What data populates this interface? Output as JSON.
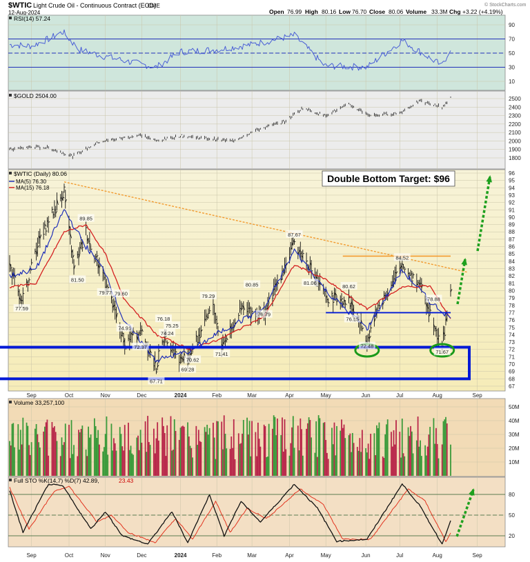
{
  "header": {
    "symbol": "$WTIC",
    "description": "Light Crude Oil - Continuous Contract (EOD)",
    "exchange": "CME",
    "date": "12-Aug-2024",
    "open_label": "Open",
    "open": "76.99",
    "high_label": "High",
    "high": "80.16",
    "low_label": "Low",
    "low": "76.70",
    "close_label": "Close",
    "close": "80.06",
    "volume_label": "Volume",
    "volume": "33.3M",
    "chg_label": "Chg",
    "chg": "+3.22 (+4.19%)",
    "watermark": "© StockCharts.com"
  },
  "colors": {
    "rsi_bg": "#cfe6dc",
    "gold_bg": "#ececec",
    "price_bg_top": "#f6f1cf",
    "price_bg_bottom": "#f7eec0",
    "volume_bg": "#f2dbb6",
    "sto_bg": "#f3dfc4",
    "up": "#3a9a3a",
    "down": "#b8274a",
    "ma5": "#1f2fb8",
    "ma15": "#d42020",
    "support": "#0019d6",
    "arrow": "#1ea01e",
    "ellipse": "#1a9a1a",
    "trendline": "#f29a2e"
  },
  "chart_data": [
    {
      "type": "line",
      "panel": "RSI",
      "title": "RSI(14) 57.24",
      "yticks": [
        "90",
        "70",
        "50",
        "30",
        "10"
      ],
      "ylim": [
        0,
        100
      ],
      "reference_levels": [
        70,
        50,
        30
      ],
      "series": [
        {
          "name": "RSI(14)",
          "x": [
            "2023-08-14",
            "2023-09-01",
            "2023-09-15",
            "2023-09-27",
            "2023-10-10",
            "2023-11-01",
            "2023-11-20",
            "2023-12-13",
            "2024-01-02",
            "2024-02-01",
            "2024-03-01",
            "2024-04-05",
            "2024-04-30",
            "2024-06-04",
            "2024-07-03",
            "2024-08-05",
            "2024-08-12"
          ],
          "values": [
            62,
            60,
            70,
            80,
            55,
            45,
            38,
            30,
            52,
            55,
            62,
            75,
            32,
            30,
            68,
            32,
            57.24
          ]
        }
      ]
    },
    {
      "type": "line",
      "panel": "Gold",
      "title": "$GOLD 2504.00",
      "yticks": [
        "2500",
        "2400",
        "2300",
        "2200",
        "2100",
        "2000",
        "1900",
        "1800"
      ],
      "ylim": [
        1750,
        2600
      ],
      "series": [
        {
          "name": "$GOLD",
          "x": [
            "2023-08-14",
            "2023-09-01",
            "2023-09-15",
            "2023-10-05",
            "2023-10-27",
            "2023-12-01",
            "2023-12-13",
            "2024-01-02",
            "2024-02-14",
            "2024-03-05",
            "2024-03-28",
            "2024-04-12",
            "2024-04-30",
            "2024-05-20",
            "2024-06-07",
            "2024-07-01",
            "2024-07-17",
            "2024-08-05",
            "2024-08-12"
          ],
          "values": [
            1900,
            1930,
            1920,
            1820,
            1990,
            2070,
            2000,
            2060,
            2000,
            2130,
            2230,
            2390,
            2300,
            2430,
            2300,
            2330,
            2470,
            2400,
            2504
          ]
        }
      ]
    },
    {
      "type": "line",
      "panel": "Price",
      "title": "$WTIC (Daily) 80.06",
      "legend": [
        "MA(5) 76.30",
        "MA(15) 76.18"
      ],
      "annotation": "Double Bottom Target: $96",
      "yticks": [
        "96",
        "95",
        "94",
        "93",
        "92",
        "91",
        "90",
        "89",
        "88",
        "87",
        "86",
        "85",
        "84",
        "83",
        "82",
        "81",
        "80",
        "79",
        "78",
        "77",
        "76",
        "75",
        "74",
        "73",
        "72",
        "71",
        "70",
        "69",
        "68",
        "67"
      ],
      "ylim": [
        67,
        96
      ],
      "price_labels": [
        {
          "x": "2023-08-24",
          "y": 77.59,
          "text": "77.59"
        },
        {
          "x": "2023-10-09",
          "y": 81.5,
          "text": "81.50"
        },
        {
          "x": "2023-10-16",
          "y": 89.85,
          "text": "89.85"
        },
        {
          "x": "2023-11-01",
          "y": 79.77,
          "text": "79.77"
        },
        {
          "x": "2023-11-14",
          "y": 79.6,
          "text": "79.60"
        },
        {
          "x": "2023-11-17",
          "y": 74.91,
          "text": "74.91"
        },
        {
          "x": "2023-11-30",
          "y": 72.37,
          "text": "72.37"
        },
        {
          "x": "2023-12-13",
          "y": 67.71,
          "text": "67.71"
        },
        {
          "x": "2023-12-19",
          "y": 76.18,
          "text": "76.18"
        },
        {
          "x": "2023-12-22",
          "y": 74.24,
          "text": "74.24"
        },
        {
          "x": "2023-12-26",
          "y": 75.25,
          "text": "75.25"
        },
        {
          "x": "2024-01-08",
          "y": 69.28,
          "text": "69.28"
        },
        {
          "x": "2024-01-12",
          "y": 70.62,
          "text": "70.62"
        },
        {
          "x": "2024-01-25",
          "y": 79.29,
          "text": "79.29"
        },
        {
          "x": "2024-02-05",
          "y": 71.41,
          "text": "71.41"
        },
        {
          "x": "2024-03-01",
          "y": 80.85,
          "text": "80.85"
        },
        {
          "x": "2024-03-11",
          "y": 76.79,
          "text": "76.79"
        },
        {
          "x": "2024-04-05",
          "y": 87.67,
          "text": "87.67"
        },
        {
          "x": "2024-04-18",
          "y": 81.06,
          "text": "81.06"
        },
        {
          "x": "2024-05-20",
          "y": 80.62,
          "text": "80.62"
        },
        {
          "x": "2024-05-23",
          "y": 76.15,
          "text": "76.15"
        },
        {
          "x": "2024-06-04",
          "y": 72.48,
          "text": "72.48"
        },
        {
          "x": "2024-07-03",
          "y": 84.52,
          "text": "84.52"
        },
        {
          "x": "2024-07-29",
          "y": 78.88,
          "text": "78.88"
        },
        {
          "x": "2024-08-05",
          "y": 71.67,
          "text": "71.67"
        }
      ],
      "series": [
        {
          "name": "$WTIC",
          "x": [
            "2023-08-14",
            "2023-08-24",
            "2023-09-05",
            "2023-09-28",
            "2023-10-06",
            "2023-10-16",
            "2023-10-25",
            "2023-11-01",
            "2023-11-16",
            "2023-12-01",
            "2023-12-13",
            "2023-12-20",
            "2024-01-02",
            "2024-01-10",
            "2024-01-29",
            "2024-02-05",
            "2024-02-21",
            "2024-03-11",
            "2024-04-05",
            "2024-04-19",
            "2024-05-01",
            "2024-05-20",
            "2024-06-04",
            "2024-06-14",
            "2024-07-03",
            "2024-07-17",
            "2024-07-26",
            "2024-08-05",
            "2024-08-12"
          ],
          "values": [
            83.5,
            78,
            86,
            93.7,
            83,
            88,
            84,
            81.5,
            73,
            74.5,
            69.5,
            74,
            70.5,
            71.5,
            78,
            72.5,
            77.5,
            76.8,
            86.5,
            83,
            79,
            78.7,
            73.5,
            78,
            83.5,
            81,
            77.2,
            72.5,
            80.06
          ]
        },
        {
          "name": "MA(5)",
          "x": [
            "2023-08-14",
            "2023-09-05",
            "2023-09-28",
            "2023-10-16",
            "2023-11-01",
            "2023-11-16",
            "2023-12-13",
            "2024-01-10",
            "2024-02-05",
            "2024-03-11",
            "2024-04-05",
            "2024-05-01",
            "2024-06-04",
            "2024-07-03",
            "2024-07-26",
            "2024-08-12"
          ],
          "values": [
            82,
            83,
            91,
            86,
            82.5,
            76,
            70.5,
            71.8,
            74.5,
            77.5,
            85.5,
            80,
            74.8,
            82.8,
            78.5,
            76.3
          ]
        },
        {
          "name": "MA(15)",
          "x": [
            "2023-08-14",
            "2023-09-05",
            "2023-09-28",
            "2023-10-16",
            "2023-11-01",
            "2023-11-16",
            "2023-12-13",
            "2024-01-10",
            "2024-02-05",
            "2024-03-11",
            "2024-04-05",
            "2024-05-01",
            "2024-06-04",
            "2024-07-03",
            "2024-07-26",
            "2024-08-12"
          ],
          "values": [
            80.5,
            81,
            88,
            89,
            85,
            79,
            74,
            72,
            73.5,
            76.5,
            83.5,
            81.5,
            77.5,
            80.5,
            80.6,
            76.18
          ]
        }
      ],
      "lines": [
        {
          "name": "resistance",
          "y": [
            84.7
          ],
          "x": [
            "2024-05-15",
            "2024-08-12"
          ]
        },
        {
          "name": "neckline",
          "y": [
            77
          ],
          "x": [
            "2024-05-01",
            "2024-08-12"
          ]
        },
        {
          "name": "trendline",
          "x": [
            "2023-09-28",
            "2024-08-26"
          ],
          "y": [
            94.8,
            82.5
          ]
        },
        {
          "name": "support-box",
          "y_range": [
            68,
            72.3
          ]
        }
      ],
      "circled_lows": [
        "2024-06-04",
        "2024-08-05"
      ]
    },
    {
      "type": "bar",
      "panel": "Volume",
      "title": "Volume 33,257,100",
      "yticks": [
        "50M",
        "40M",
        "30M",
        "20M",
        "10M"
      ],
      "ylim": [
        0,
        55
      ],
      "values": [
        33.3
      ]
    },
    {
      "type": "line",
      "panel": "Stochastic",
      "title": "Full STO %K(14,7) %D(7) 42.89, 23.43",
      "title_parts": [
        "Full STO %K(14,7) %D(7) 42.89,",
        "23.43"
      ],
      "yticks": [
        "80",
        "50",
        "20"
      ],
      "ylim": [
        0,
        100
      ],
      "reference_levels": [
        80,
        50,
        20
      ],
      "series": [
        {
          "name": "%K",
          "x": [
            "2023-08-14",
            "2023-08-25",
            "2023-09-15",
            "2023-09-27",
            "2023-10-20",
            "2023-11-01",
            "2023-11-15",
            "2023-12-06",
            "2023-12-26",
            "2024-01-08",
            "2024-01-26",
            "2024-02-07",
            "2024-02-21",
            "2024-03-08",
            "2024-04-05",
            "2024-04-24",
            "2024-05-10",
            "2024-06-04",
            "2024-07-03",
            "2024-07-17",
            "2024-08-05",
            "2024-08-12"
          ],
          "values": [
            85,
            25,
            95,
            92,
            30,
            55,
            20,
            8,
            55,
            10,
            80,
            20,
            70,
            40,
            95,
            60,
            12,
            15,
            95,
            65,
            8,
            42.89
          ]
        },
        {
          "name": "%D",
          "x": [
            "2023-08-14",
            "2023-08-30",
            "2023-09-20",
            "2023-10-02",
            "2023-10-25",
            "2023-11-06",
            "2023-11-20",
            "2023-12-12",
            "2023-12-29",
            "2024-01-12",
            "2024-01-31",
            "2024-02-12",
            "2024-02-26",
            "2024-03-13",
            "2024-04-10",
            "2024-04-29",
            "2024-05-15",
            "2024-06-07",
            "2024-07-08",
            "2024-07-22",
            "2024-08-08",
            "2024-08-12"
          ],
          "values": [
            90,
            30,
            85,
            92,
            40,
            50,
            25,
            10,
            45,
            15,
            70,
            25,
            60,
            45,
            88,
            65,
            15,
            15,
            88,
            70,
            12,
            23.43
          ]
        }
      ]
    }
  ],
  "x_axis": {
    "labels": [
      "Sep",
      "Oct",
      "Nov",
      "Dec",
      "2024",
      "Feb",
      "Mar",
      "Apr",
      "May",
      "Jun",
      "Jul",
      "Aug",
      "Sep"
    ],
    "dates": [
      "2023-09-01",
      "2023-10-02",
      "2023-11-01",
      "2023-12-01",
      "2024-01-02",
      "2024-02-01",
      "2024-03-01",
      "2024-04-01",
      "2024-05-01",
      "2024-06-03",
      "2024-07-01",
      "2024-08-01",
      "2024-09-03"
    ]
  }
}
